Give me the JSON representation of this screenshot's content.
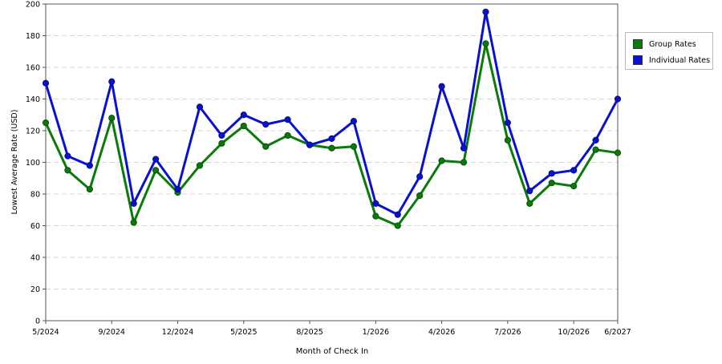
{
  "chart_data": {
    "type": "line",
    "xlabel": "Month of Check In",
    "ylabel": "Lowest Average Rate (USD)",
    "ylim": [
      0,
      200
    ],
    "yticks": [
      0,
      20,
      40,
      60,
      80,
      100,
      120,
      140,
      160,
      180,
      200
    ],
    "x_tick_labels": [
      "5/2024",
      "9/2024",
      "12/2024",
      "5/2025",
      "8/2025",
      "1/2026",
      "4/2026",
      "7/2026",
      "10/2026",
      "6/2027"
    ],
    "x_tick_positions": [
      0,
      3,
      6,
      9,
      12,
      15,
      18,
      21,
      24,
      26
    ],
    "grid": "horizontal dashed",
    "legend_position": "right",
    "series": [
      {
        "name": "Group Rates",
        "color": "#0a7a0a",
        "values": [
          125,
          95,
          83,
          128,
          62,
          95,
          81,
          98,
          112,
          123,
          110,
          117,
          111,
          109,
          110,
          66,
          60,
          79,
          101,
          100,
          175,
          114,
          74,
          87,
          85,
          108,
          106
        ]
      },
      {
        "name": "Individual Rates",
        "color": "#0a10d0",
        "values": [
          150,
          104,
          98,
          151,
          74,
          102,
          83,
          135,
          117,
          130,
          124,
          127,
          111,
          115,
          126,
          74,
          67,
          91,
          148,
          109,
          195,
          125,
          82,
          93,
          95,
          114,
          140
        ]
      }
    ]
  }
}
